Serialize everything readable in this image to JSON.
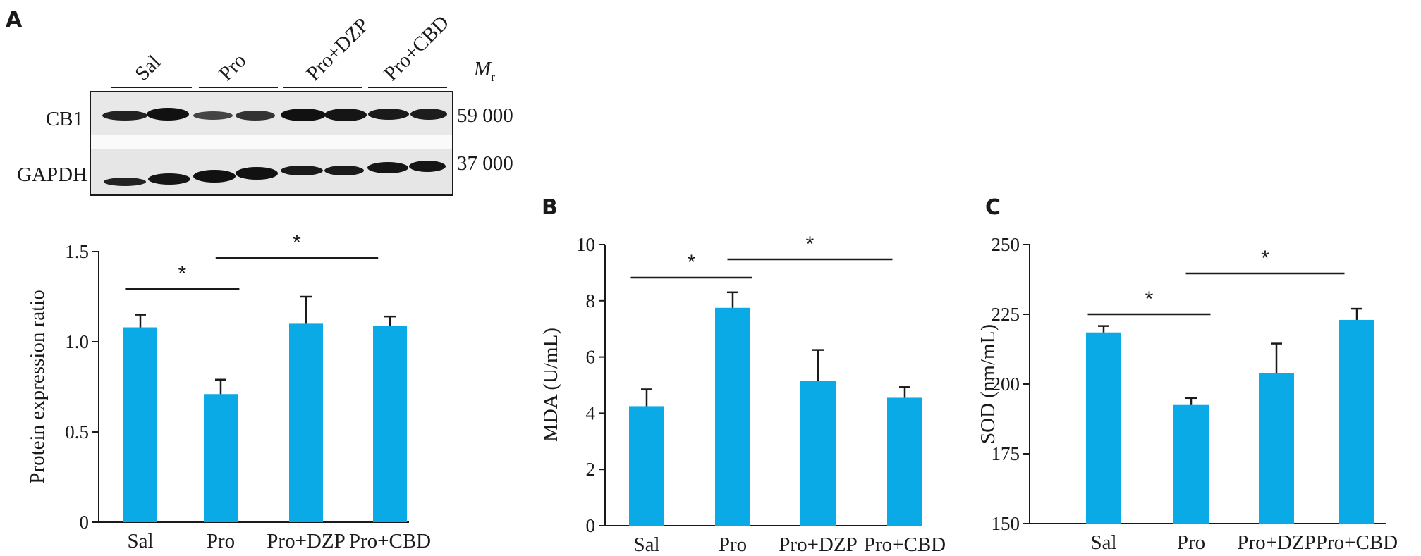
{
  "bar_color": "#0aaae6",
  "panel_a": {
    "letter": "A",
    "blot": {
      "lane_groups": [
        "Sal",
        "Pro",
        "Pro+DZP",
        "Pro+CBD"
      ],
      "mr_label_main": "M",
      "mr_label_sub": "r",
      "rows": [
        {
          "label": "CB1",
          "mass": "59 000"
        },
        {
          "label": "GAPDH",
          "mass": "37 000"
        }
      ]
    }
  },
  "panel_b": {
    "letter": "B"
  },
  "panel_c": {
    "letter": "C"
  },
  "chart_data": [
    {
      "type": "bar",
      "categories": [
        "Sal",
        "Pro",
        "Pro+DZP",
        "Pro+CBD"
      ],
      "values": [
        1.08,
        0.71,
        1.1,
        1.09
      ],
      "errors": [
        0.07,
        0.08,
        0.15,
        0.05
      ],
      "ylabel": "Protein expression ratio",
      "ylim": [
        0,
        1.5
      ],
      "yticks": [
        "0",
        "0.5",
        "1.0",
        "1.5"
      ],
      "significance": [
        {
          "from": 0,
          "to": 1,
          "label": "*"
        },
        {
          "from": 1,
          "to": 3,
          "label": "*"
        }
      ]
    },
    {
      "type": "bar",
      "categories": [
        "Sal",
        "Pro",
        "Pro+DZP",
        "Pro+CBD"
      ],
      "values": [
        4.25,
        7.75,
        5.15,
        4.55
      ],
      "errors": [
        0.6,
        0.55,
        1.1,
        0.38
      ],
      "ylabel": "MDA (U/mL)",
      "ylim": [
        0,
        10
      ],
      "yticks": [
        "0",
        "2",
        "4",
        "6",
        "8",
        "10"
      ],
      "significance": [
        {
          "from": 0,
          "to": 1,
          "label": "*"
        },
        {
          "from": 1,
          "to": 3,
          "label": "*"
        }
      ]
    },
    {
      "type": "bar",
      "categories": [
        "Sal",
        "Pro",
        "Pro+DZP",
        "Pro+CBD"
      ],
      "values": [
        218.5,
        192.5,
        204,
        223
      ],
      "errors": [
        2.3,
        2.5,
        10.5,
        4
      ],
      "ylabel": "SOD (nm/mL)",
      "ylim": [
        150,
        250
      ],
      "yticks": [
        "150",
        "175",
        "200",
        "225",
        "250"
      ],
      "significance": [
        {
          "from": 0,
          "to": 1,
          "label": "*"
        },
        {
          "from": 1,
          "to": 3,
          "label": "*"
        }
      ]
    }
  ]
}
